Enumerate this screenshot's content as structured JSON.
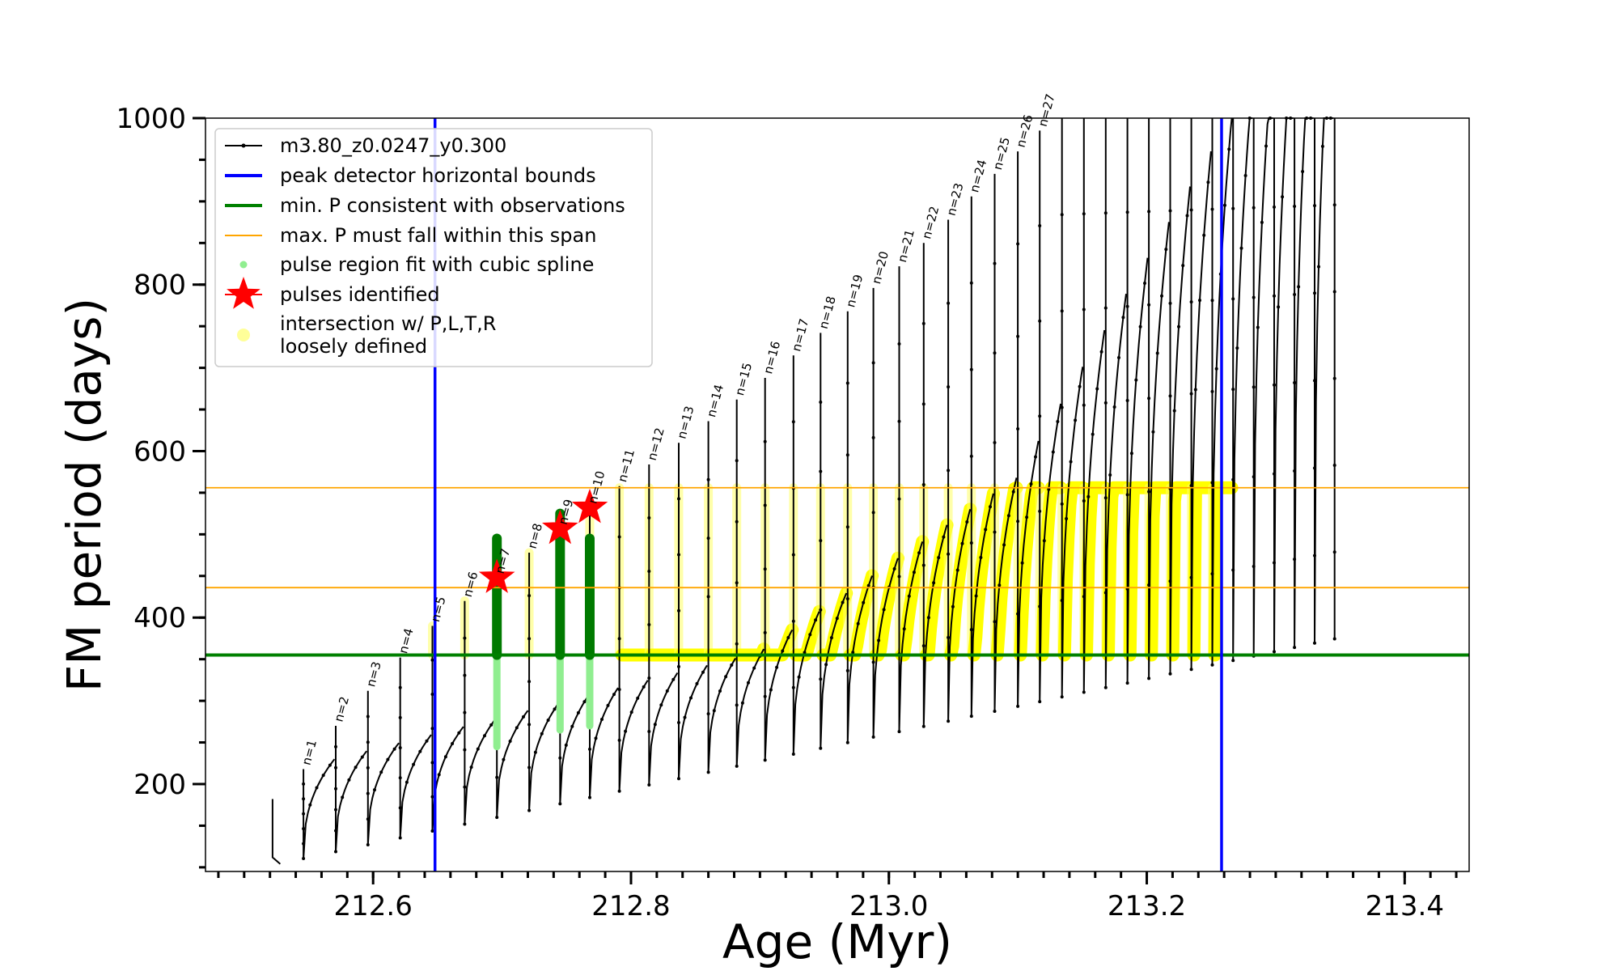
{
  "chart_data": {
    "type": "line",
    "xlabel": "Age (Myr)",
    "ylabel": "FM period (days)",
    "xlim": [
      212.47,
      213.45
    ],
    "ylim": [
      95,
      1000
    ],
    "x_ticks": [
      212.6,
      212.8,
      213.0,
      213.2,
      213.4
    ],
    "x_tick_labels": [
      "212.6",
      "212.8",
      "213.0",
      "213.2",
      "213.4"
    ],
    "x_minor_step": 0.02,
    "y_ticks": [
      200,
      400,
      600,
      800,
      1000
    ],
    "y_tick_labels": [
      "200",
      "400",
      "600",
      "800",
      "1000"
    ],
    "y_minor_step": 50,
    "legend_position": "top-left",
    "legend": [
      {
        "label": "m3.80_z0.0247_y0.300",
        "kind": "line-dot",
        "color": "#000000"
      },
      {
        "label": "peak detector horizontal bounds",
        "kind": "line",
        "color": "#0000ff"
      },
      {
        "label": "min. P consistent with observations",
        "kind": "line",
        "color": "#008000"
      },
      {
        "label": "max. P must fall within this span",
        "kind": "thin-line",
        "color": "#ffa500"
      },
      {
        "label": "pulse region fit with cubic spline",
        "kind": "dot",
        "color": "#90ee90"
      },
      {
        "label": "pulses identified",
        "kind": "star",
        "color": "#ff0000"
      },
      {
        "label": "intersection w/ P,L,T,R",
        "kind": "circle",
        "color": "#ffff99"
      },
      {
        "label": "loosely defined",
        "kind": "none",
        "color": ""
      }
    ],
    "vertical_lines": [
      {
        "name": "peak-detector-bound-left",
        "x": 212.648,
        "color": "#0000ff"
      },
      {
        "name": "peak-detector-bound-right",
        "x": 213.258,
        "color": "#0000ff"
      }
    ],
    "horizontal_lines": [
      {
        "name": "min-period-line",
        "y": 355,
        "color": "#008000",
        "weight": "thick"
      },
      {
        "name": "max-period-span-lower",
        "y": 436,
        "color": "#ffa500",
        "weight": "thin"
      },
      {
        "name": "max-period-span-upper",
        "y": 556,
        "color": "#ffa500",
        "weight": "thin"
      }
    ],
    "pulses": [
      {
        "n": 1,
        "age": 212.546,
        "period_peak": 218
      },
      {
        "n": 2,
        "age": 212.571,
        "period_peak": 270
      },
      {
        "n": 3,
        "age": 212.596,
        "period_peak": 312
      },
      {
        "n": 4,
        "age": 212.621,
        "period_peak": 352
      },
      {
        "n": 5,
        "age": 212.646,
        "period_peak": 390
      },
      {
        "n": 6,
        "age": 212.671,
        "period_peak": 420
      },
      {
        "n": 7,
        "age": 212.696,
        "period_peak": 448
      },
      {
        "n": 8,
        "age": 212.721,
        "period_peak": 478
      },
      {
        "n": 9,
        "age": 212.745,
        "period_peak": 507
      },
      {
        "n": 10,
        "age": 212.768,
        "period_peak": 532
      },
      {
        "n": 11,
        "age": 212.791,
        "period_peak": 558
      },
      {
        "n": 12,
        "age": 212.814,
        "period_peak": 584
      },
      {
        "n": 13,
        "age": 212.837,
        "period_peak": 610
      },
      {
        "n": 14,
        "age": 212.86,
        "period_peak": 636
      },
      {
        "n": 15,
        "age": 212.882,
        "period_peak": 662
      },
      {
        "n": 16,
        "age": 212.904,
        "period_peak": 688
      },
      {
        "n": 17,
        "age": 212.926,
        "period_peak": 715
      },
      {
        "n": 18,
        "age": 212.947,
        "period_peak": 742
      },
      {
        "n": 19,
        "age": 212.968,
        "period_peak": 768
      },
      {
        "n": 20,
        "age": 212.988,
        "period_peak": 796
      },
      {
        "n": 21,
        "age": 213.008,
        "period_peak": 822
      },
      {
        "n": 22,
        "age": 213.027,
        "period_peak": 850
      },
      {
        "n": 23,
        "age": 213.046,
        "period_peak": 878
      },
      {
        "n": 24,
        "age": 213.064,
        "period_peak": 906
      },
      {
        "n": 25,
        "age": 213.082,
        "period_peak": 933
      },
      {
        "n": 26,
        "age": 213.1,
        "period_peak": 960
      },
      {
        "n": 27,
        "age": 213.117,
        "period_peak": 985
      }
    ],
    "pulse_labels": [
      "n=1",
      "n=2",
      "n=3",
      "n=4",
      "n=5",
      "n=6",
      "n=7",
      "n=8",
      "n=9",
      "n=10",
      "n=11",
      "n=12",
      "n=13",
      "n=14",
      "n=15",
      "n=16",
      "n=17",
      "n=18",
      "n=19",
      "n=20",
      "n=21",
      "n=22",
      "n=23",
      "n=24",
      "n=25",
      "n=26",
      "n=27"
    ],
    "pulses_identified": [
      {
        "n": 7,
        "age": 212.696,
        "period": 448
      },
      {
        "n": 9,
        "age": 212.745,
        "period": 507
      },
      {
        "n": 10,
        "age": 212.768,
        "period": 532
      }
    ],
    "spline_fit_regions": [
      {
        "age": 212.696,
        "period_min": 245,
        "period_max": 495
      },
      {
        "age": 212.745,
        "period_min": 265,
        "period_max": 525
      },
      {
        "age": 212.768,
        "period_min": 270,
        "period_max": 495
      }
    ],
    "track_end_age": 213.36,
    "track_start_age": 212.522
  }
}
